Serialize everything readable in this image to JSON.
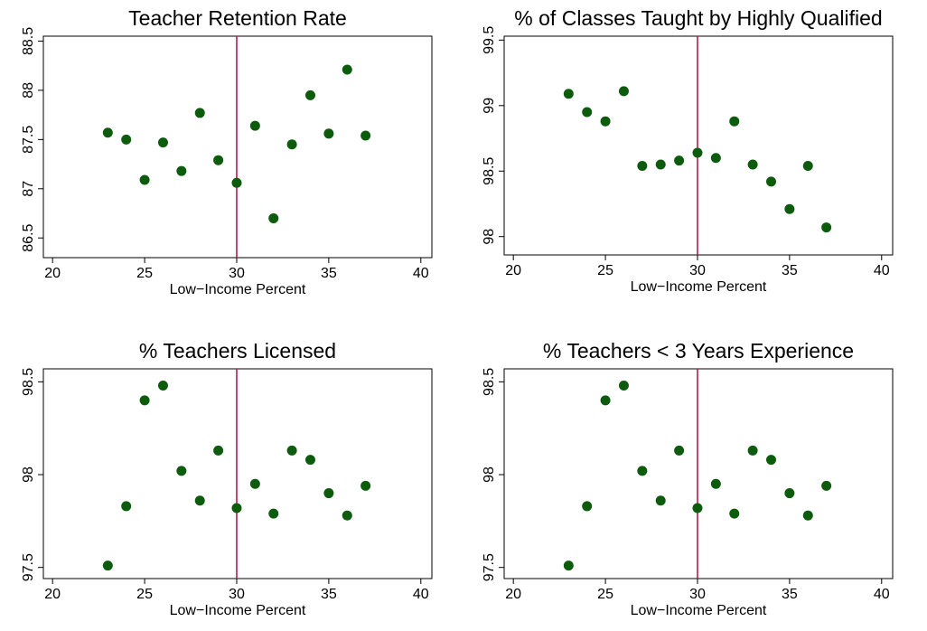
{
  "chart_data": [
    {
      "type": "scatter",
      "title": "Teacher Retention Rate",
      "xlabel": "Low−Income Percent",
      "x": [
        23,
        24,
        25,
        26,
        27,
        28,
        29,
        30,
        31,
        32,
        33,
        34,
        35,
        36,
        37
      ],
      "values": [
        87.57,
        87.5,
        87.09,
        87.47,
        87.18,
        87.77,
        87.29,
        87.06,
        87.64,
        86.7,
        87.45,
        87.95,
        87.56,
        88.21,
        87.54
      ],
      "color": "#0d5c0d",
      "vline": 30,
      "vline_color": "#b01045",
      "xlim": [
        19.5,
        40.6
      ],
      "ylim": [
        86.3,
        88.55
      ],
      "xticks": [
        20,
        25,
        30,
        35,
        40
      ],
      "yticks": [
        86.5,
        87,
        87.5,
        88,
        88.5
      ]
    },
    {
      "type": "scatter",
      "title": "% of Classes Taught by Highly Qualified",
      "xlabel": "Low−Income Percent",
      "x": [
        23,
        24,
        25,
        26,
        27,
        28,
        29,
        30,
        31,
        32,
        33,
        34,
        35,
        36,
        37
      ],
      "values": [
        99.09,
        98.95,
        98.88,
        99.11,
        98.54,
        98.55,
        98.58,
        98.64,
        98.6,
        98.88,
        98.55,
        98.42,
        98.21,
        98.54,
        98.07
      ],
      "color": "#0d5c0d",
      "vline": 30,
      "vline_color": "#b01045",
      "xlim": [
        19.5,
        40.6
      ],
      "ylim": [
        97.86,
        99.53
      ],
      "xticks": [
        20,
        25,
        30,
        35,
        40
      ],
      "yticks": [
        98,
        98.5,
        99,
        99.5
      ]
    },
    {
      "type": "scatter",
      "title": "% Teachers Licensed",
      "xlabel": "Low−Income Percent",
      "x": [
        23,
        24,
        25,
        26,
        27,
        28,
        29,
        30,
        31,
        32,
        33,
        34,
        35,
        36,
        37
      ],
      "values": [
        97.51,
        97.83,
        98.4,
        98.48,
        98.02,
        97.86,
        98.13,
        97.82,
        97.95,
        97.79,
        98.13,
        98.08,
        97.9,
        97.78,
        97.94
      ],
      "color": "#0d5c0d",
      "vline": 30,
      "vline_color": "#b01045",
      "xlim": [
        19.5,
        40.6
      ],
      "ylim": [
        97.44,
        98.57
      ],
      "xticks": [
        20,
        25,
        30,
        35,
        40
      ],
      "yticks": [
        97.5,
        98,
        98.5
      ]
    },
    {
      "type": "scatter",
      "title": "% Teachers < 3 Years Experience",
      "xlabel": "Low−Income Percent",
      "x": [
        23,
        24,
        25,
        26,
        27,
        28,
        29,
        30,
        31,
        32,
        33,
        34,
        35,
        36,
        37
      ],
      "values": [
        97.51,
        97.83,
        98.4,
        98.48,
        98.02,
        97.86,
        98.13,
        97.82,
        97.95,
        97.79,
        98.13,
        98.08,
        97.9,
        97.78,
        97.94
      ],
      "color": "#0d5c0d",
      "vline": 30,
      "vline_color": "#b01045",
      "xlim": [
        19.5,
        40.6
      ],
      "ylim": [
        97.44,
        98.57
      ],
      "xticks": [
        20,
        25,
        30,
        35,
        40
      ],
      "yticks": [
        97.5,
        98,
        98.5
      ]
    }
  ]
}
